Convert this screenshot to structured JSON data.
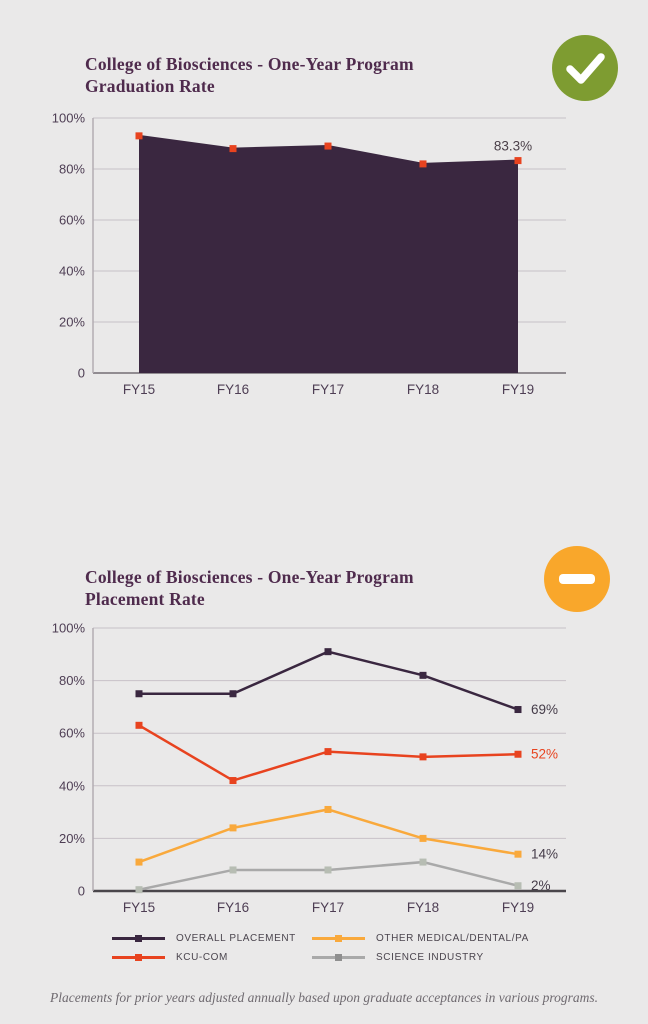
{
  "page": {
    "background": "#eae9e9",
    "footnote": "Placements for prior years adjusted annually based upon graduate acceptances in various programs."
  },
  "icons": {
    "graduation_status": {
      "name": "check-circle-icon",
      "circle_color": "#7e9c31",
      "glyph_color": "#ffffff"
    },
    "placement_status": {
      "name": "minus-circle-icon",
      "circle_color": "#f9a72b",
      "glyph_color": "#ffffff"
    }
  },
  "chart_data": [
    {
      "type": "area",
      "title": "College of Biosciences - One-Year Program Graduation Rate",
      "title_lines": [
        "College of Biosciences - One-Year Program",
        "Graduation Rate"
      ],
      "categories": [
        "FY15",
        "FY16",
        "FY17",
        "FY18",
        "FY19"
      ],
      "series": [
        {
          "name": "Graduation Rate",
          "values": [
            93,
            88,
            89,
            82,
            83.3
          ],
          "color": "#3a2740",
          "marker_color": "#e8431f"
        }
      ],
      "end_label": "83.3%",
      "end_label_color": "#4b4049",
      "xlabel": "",
      "ylabel": "",
      "ylim": [
        0,
        100
      ],
      "yticks": [
        "100%",
        "80%",
        "60%",
        "40%",
        "20%",
        "0"
      ],
      "grid": true,
      "legend": false
    },
    {
      "type": "line",
      "title": "College of Biosciences - One-Year Program Placement Rate",
      "title_lines": [
        "College of Biosciences - One-Year Program",
        "Placement Rate"
      ],
      "categories": [
        "FY15",
        "FY16",
        "FY17",
        "FY18",
        "FY19"
      ],
      "series": [
        {
          "name": "OVERALL PLACEMENT",
          "values": [
            75,
            75,
            91,
            82,
            69
          ],
          "color": "#3a2740",
          "end_label": "69%",
          "end_label_color": "#453c49"
        },
        {
          "name": "KCU-COM",
          "values": [
            63,
            42,
            53,
            51,
            52
          ],
          "color": "#e8431f",
          "end_label": "52%",
          "end_label_color": "#e8431f"
        },
        {
          "name": "OTHER MEDICAL/DENTAL/PA",
          "values": [
            11,
            24,
            31,
            20,
            14
          ],
          "color": "#f9a93c",
          "end_label": "14%",
          "end_label_color": "#453c49"
        },
        {
          "name": "SCIENCE INDUSTRY",
          "values": [
            0.5,
            8,
            8,
            11,
            2
          ],
          "color": "#a9a9a9",
          "marker_color": "#b7bdb3",
          "legend_marker_color": "#8f8f8f",
          "end_label": "2%",
          "end_label_color": "#453c49"
        }
      ],
      "xlabel": "",
      "ylabel": "",
      "ylim": [
        0,
        100
      ],
      "yticks": [
        "100%",
        "80%",
        "60%",
        "40%",
        "20%",
        "0"
      ],
      "grid": true,
      "legend_position": "bottom",
      "legend_order": [
        0,
        2,
        1,
        3
      ]
    }
  ]
}
